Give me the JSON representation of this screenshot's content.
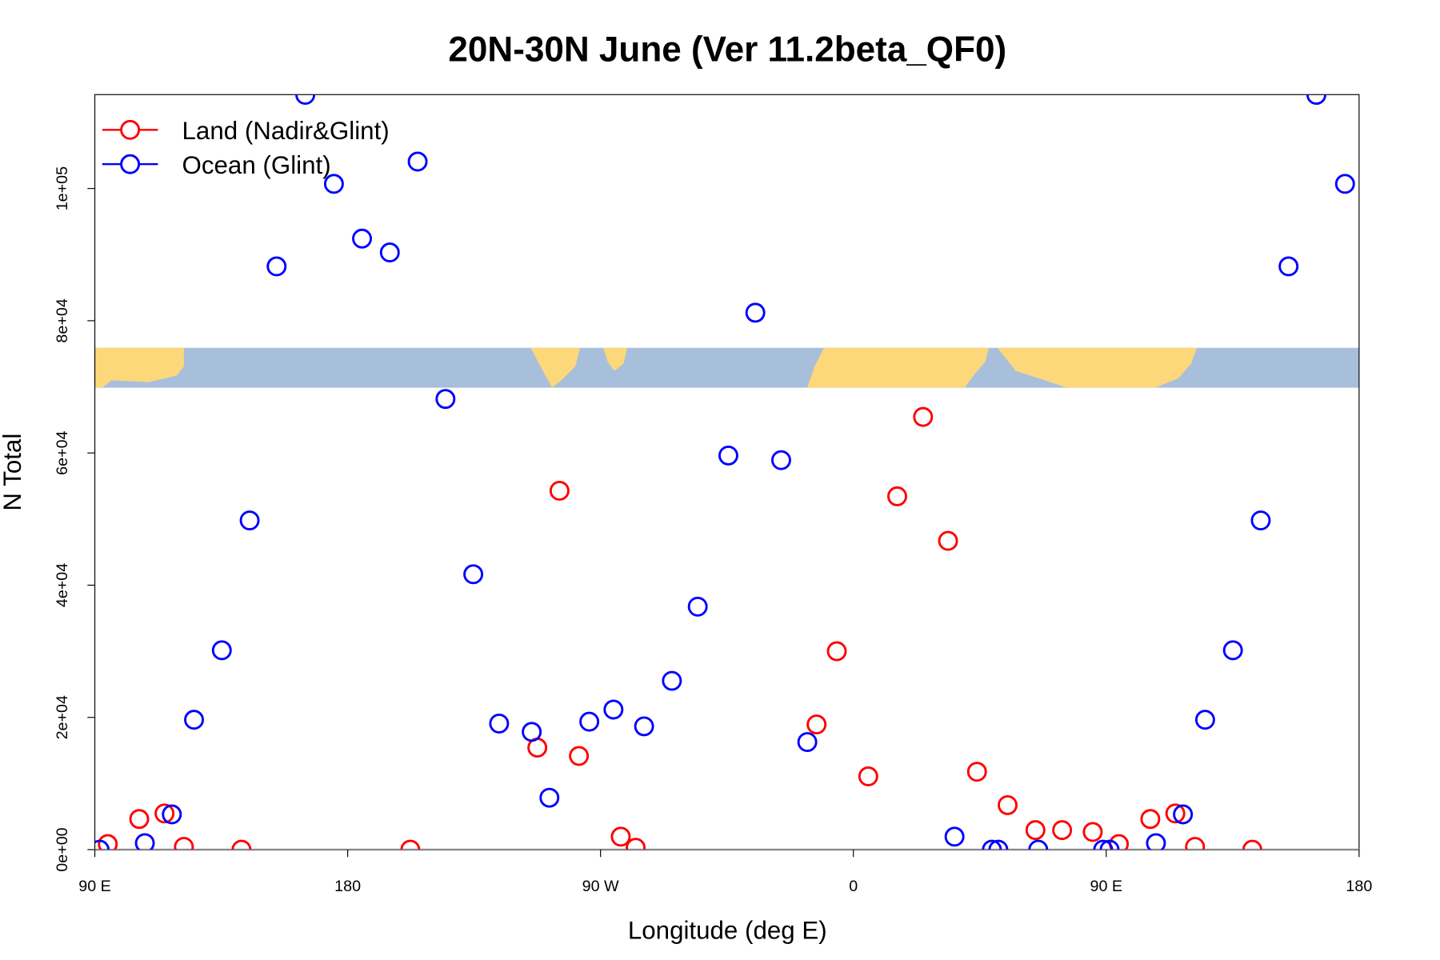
{
  "chart_data": {
    "type": "scatter",
    "title": "20N-30N June (Ver 11.2beta_QF0)",
    "x_label": "Longitude (deg E)",
    "y_label": "N Total",
    "xlim": [
      90,
      540
    ],
    "ylim": [
      0,
      114200
    ],
    "xticks": [
      {
        "value": 90,
        "label": "90 E"
      },
      {
        "value": 180,
        "label": "180"
      },
      {
        "value": 270,
        "label": "90 W"
      },
      {
        "value": 360,
        "label": "0"
      },
      {
        "value": 450,
        "label": "90 E"
      },
      {
        "value": 540,
        "label": "180"
      }
    ],
    "yticks": [
      {
        "value": 0,
        "label": "0e+00"
      },
      {
        "value": 20000,
        "label": "2e+04"
      },
      {
        "value": 40000,
        "label": "4e+04"
      },
      {
        "value": 60000,
        "label": "6e+04"
      },
      {
        "value": 80000,
        "label": "8e+04"
      },
      {
        "value": 100000,
        "label": "1e+05"
      }
    ],
    "legend": "topleft",
    "series": [
      {
        "name": "Land (Nadir&Glint)",
        "color": "#ff0000",
        "x": [
          94.6,
          105.8,
          114.8,
          121.7,
          142.2,
          202.3,
          247.5,
          255.4,
          262.3,
          277.2,
          282.5,
          346.9,
          354.1,
          365.3,
          375.6,
          384.8,
          393.7,
          404.0,
          414.9,
          424.8,
          434.3,
          445.2,
          454.5,
          465.7,
          474.6,
          481.6,
          502.0
        ],
        "values": [
          840,
          4630,
          5470,
          420,
          0,
          0,
          15430,
          54280,
          14170,
          1960,
          280,
          18930,
          30010,
          11080,
          53440,
          65450,
          46700,
          11780,
          6730,
          2950,
          2950,
          2670,
          840,
          4630,
          5470,
          420,
          0
        ]
      },
      {
        "name": "Ocean (Glint)",
        "color": "#0000ff",
        "x": [
          91.7,
          107.8,
          117.4,
          125.3,
          135.2,
          145.1,
          154.7,
          164.9,
          175.1,
          185.1,
          195.0,
          204.9,
          214.8,
          224.7,
          233.9,
          245.5,
          251.8,
          266.0,
          274.6,
          285.5,
          295.4,
          304.6,
          315.5,
          325.1,
          334.3,
          343.6,
          396.0,
          409.3,
          411.6,
          425.8,
          448.9,
          451.2,
          467.7,
          477.3,
          485.2,
          495.1,
          505.0,
          514.9,
          524.8,
          535.0
        ],
        "values": [
          0,
          980,
          5330,
          19640,
          30150,
          49790,
          88220,
          114160,
          100700,
          92420,
          90320,
          104070,
          68160,
          41650,
          19070,
          17810,
          7850,
          19350,
          21180,
          18650,
          25530,
          36750,
          59610,
          81210,
          58910,
          16270,
          1960,
          0,
          0,
          0,
          0,
          0,
          980,
          5330,
          19640,
          30150,
          49790,
          88220,
          114160,
          100700
        ]
      }
    ]
  }
}
